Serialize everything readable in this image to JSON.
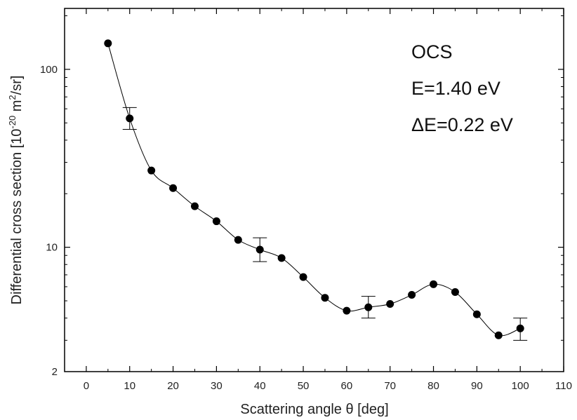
{
  "chart_data": {
    "type": "scatter",
    "title": "",
    "xlabel": "Scattering angle θ [deg]",
    "ylabel_main": "Differential cross section [10",
    "ylabel_exp": "-20",
    "ylabel_mid": " m",
    "ylabel_exp2": "2",
    "ylabel_tail": "/sr]",
    "xlim": [
      -5,
      110
    ],
    "ylim": [
      2,
      220
    ],
    "yscale": "log",
    "grid": false,
    "x_ticks": [
      0,
      10,
      20,
      30,
      40,
      50,
      60,
      70,
      80,
      90,
      100,
      110
    ],
    "y_tick_labels": [
      {
        "value": 2,
        "label": "2"
      },
      {
        "value": 10,
        "label": "10"
      },
      {
        "value": 100,
        "label": "100"
      }
    ],
    "annotations": [
      "OCS",
      "E=1.40 eV",
      "ΔE=0.22 eV"
    ],
    "series": [
      {
        "x": [
          5,
          10,
          15,
          20,
          25,
          30,
          35,
          40,
          45,
          50,
          55,
          60,
          65,
          70,
          75,
          80,
          85,
          90,
          95,
          100
        ],
        "y": [
          140,
          53,
          27,
          21.5,
          17,
          14,
          11,
          9.7,
          8.7,
          6.8,
          5.2,
          4.4,
          4.6,
          4.8,
          5.4,
          6.2,
          5.6,
          4.2,
          3.2,
          3.5
        ]
      }
    ],
    "error_bars": [
      {
        "x": 10,
        "low": 46,
        "high": 61
      },
      {
        "x": 40,
        "low": 8.3,
        "high": 11.3
      },
      {
        "x": 65,
        "low": 4.0,
        "high": 5.3
      },
      {
        "x": 100,
        "low": 3.0,
        "high": 4.0
      }
    ],
    "colors": {
      "marker": "#000000",
      "line": "#000000",
      "axis": "#000000"
    }
  }
}
